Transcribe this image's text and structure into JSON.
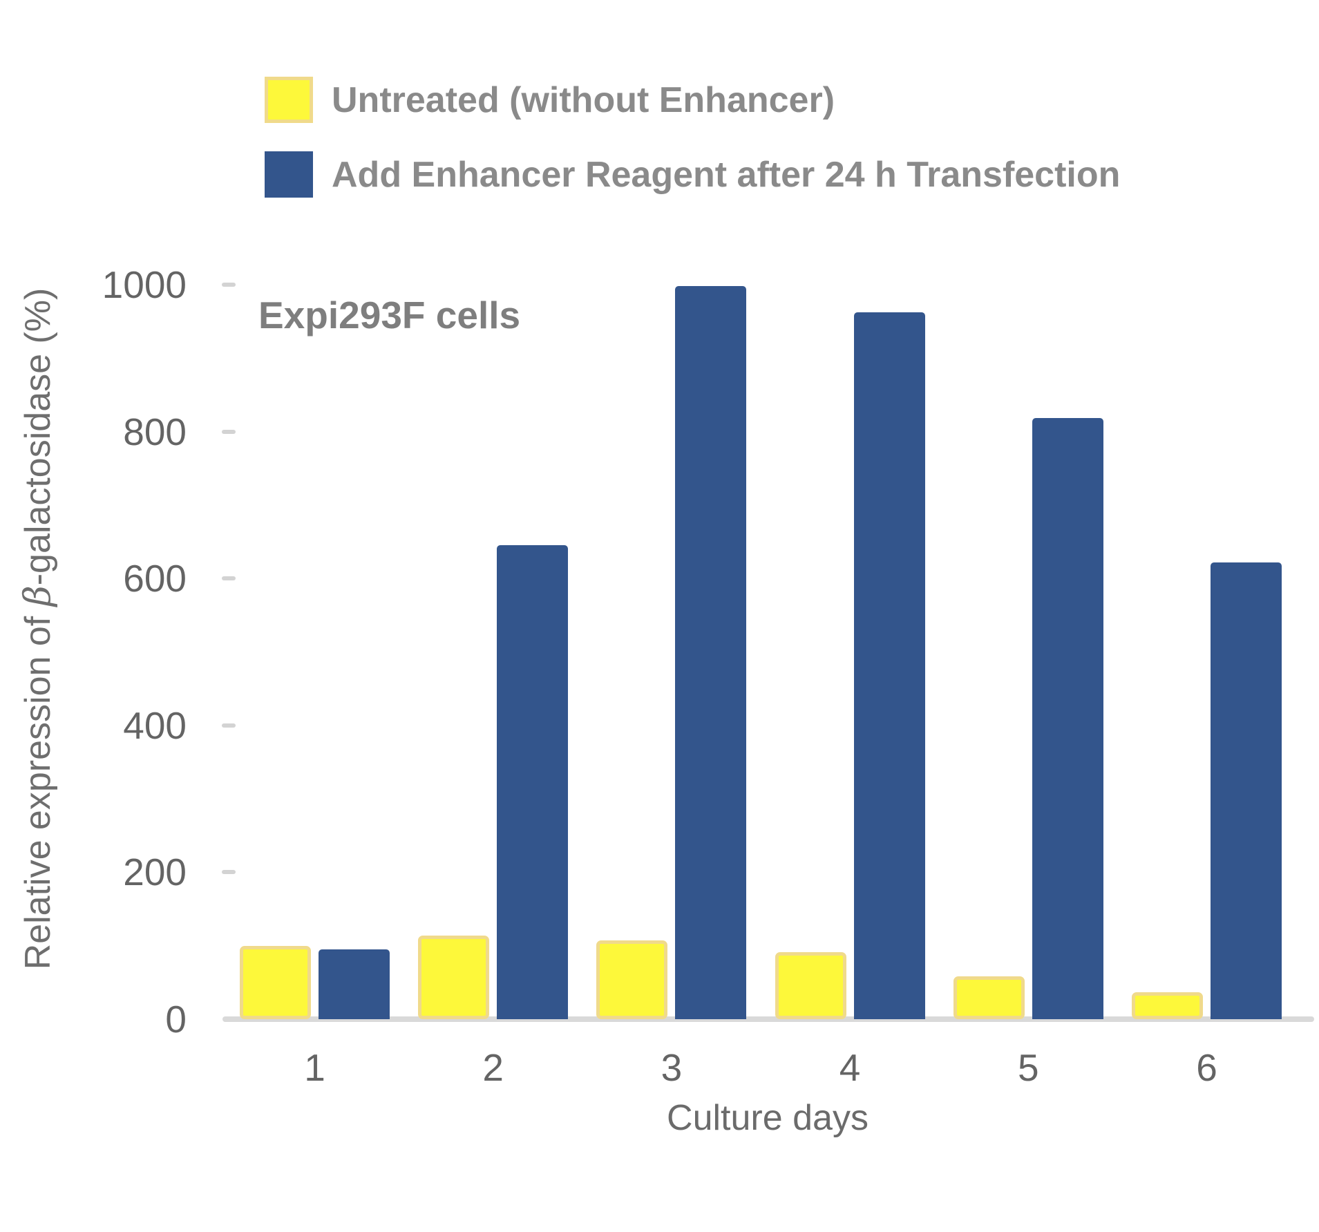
{
  "legend": {
    "items": [
      {
        "label": "Untreated (without Enhancer)",
        "swatch_color": "#fdf83a",
        "swatch_border": "#f0da8b"
      },
      {
        "label": "Add Enhancer Reagent after 24 h Transfection",
        "swatch_color": "#33558c",
        "swatch_border": "#33558c"
      }
    ]
  },
  "annotation": {
    "text": "Expi293F cells"
  },
  "axes": {
    "y_label_prefix": "Relative expression of ",
    "y_label_beta": "β",
    "y_label_suffix": "-galactosidase (%)",
    "x_label": "Culture days"
  },
  "chart_data": {
    "type": "bar",
    "categories": [
      "1",
      "2",
      "3",
      "4",
      "5",
      "6"
    ],
    "series": [
      {
        "name": "Untreated (without Enhancer)",
        "color": "#fdf83a",
        "border_color": "#f0da8b",
        "values": [
          100,
          114,
          107,
          91,
          58,
          37
        ]
      },
      {
        "name": "Add Enhancer Reagent after 24 h Transfection",
        "color": "#33558c",
        "values": [
          95,
          645,
          998,
          962,
          818,
          622
        ]
      }
    ],
    "title": "Expi293F cells",
    "xlabel": "Culture days",
    "ylabel": "Relative expression of β-galactosidase (%)",
    "ylim": [
      0,
      1000
    ],
    "yticks": [
      0,
      200,
      400,
      600,
      800,
      1000
    ],
    "grid": false,
    "legend_position": "top-left"
  },
  "colors": {
    "axis_line": "#d9d9d9",
    "tick_dash": "#d3d3d3",
    "tick_text": "#646464",
    "axis_title_text": "#6b6b6b",
    "legend_text": "#8a8a8a",
    "annotation_text": "#7e7e7e"
  }
}
